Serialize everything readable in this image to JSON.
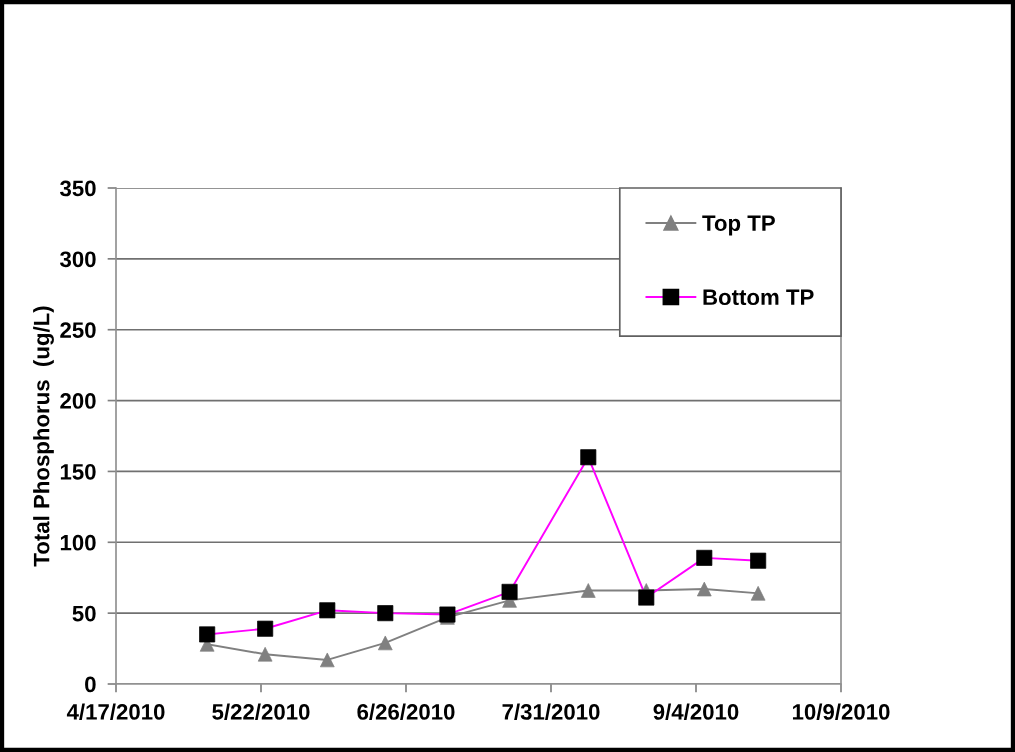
{
  "chart_data": {
    "type": "line",
    "ylabel": "Total Phosphorus  (ug/L)",
    "x": [
      "2010-05-09",
      "2010-05-23",
      "2010-06-07",
      "2010-06-21",
      "2010-07-06",
      "2010-07-21",
      "2010-08-09",
      "2010-08-23",
      "2010-09-06",
      "2010-09-19"
    ],
    "series": [
      {
        "name": "Top TP",
        "color": "#808080",
        "marker": "triangle",
        "values": [
          28,
          21,
          17,
          29,
          47,
          59,
          66,
          66,
          67,
          64
        ]
      },
      {
        "name": "Bottom TP",
        "color": "#ff00ff",
        "colors": [
          "#000000",
          "#000000",
          "#000000",
          "#000000",
          "#000000",
          "#000000",
          "#000000",
          "#000000",
          "#000000",
          "#000000"
        ],
        "marker": "square",
        "values": [
          35,
          39,
          52,
          50,
          49,
          65,
          160,
          61,
          89,
          87
        ]
      }
    ],
    "xlim": [
      "2010-04-17",
      "2010-10-09"
    ],
    "xticks": [
      {
        "value": "2010-04-17",
        "label": "4/17/2010"
      },
      {
        "value": "2010-05-22",
        "label": "5/22/2010"
      },
      {
        "value": "2010-06-26",
        "label": "6/26/2010"
      },
      {
        "value": "2010-07-31",
        "label": "7/31/2010"
      },
      {
        "value": "2010-09-04",
        "label": "9/4/2010"
      },
      {
        "value": "2010-10-09",
        "label": "10/9/2010"
      }
    ],
    "ylim": [
      0,
      350
    ],
    "yticks": [
      0,
      50,
      100,
      150,
      200,
      250,
      300,
      350
    ],
    "grid": "y",
    "legend": "top right",
    "line_style": "solid"
  }
}
